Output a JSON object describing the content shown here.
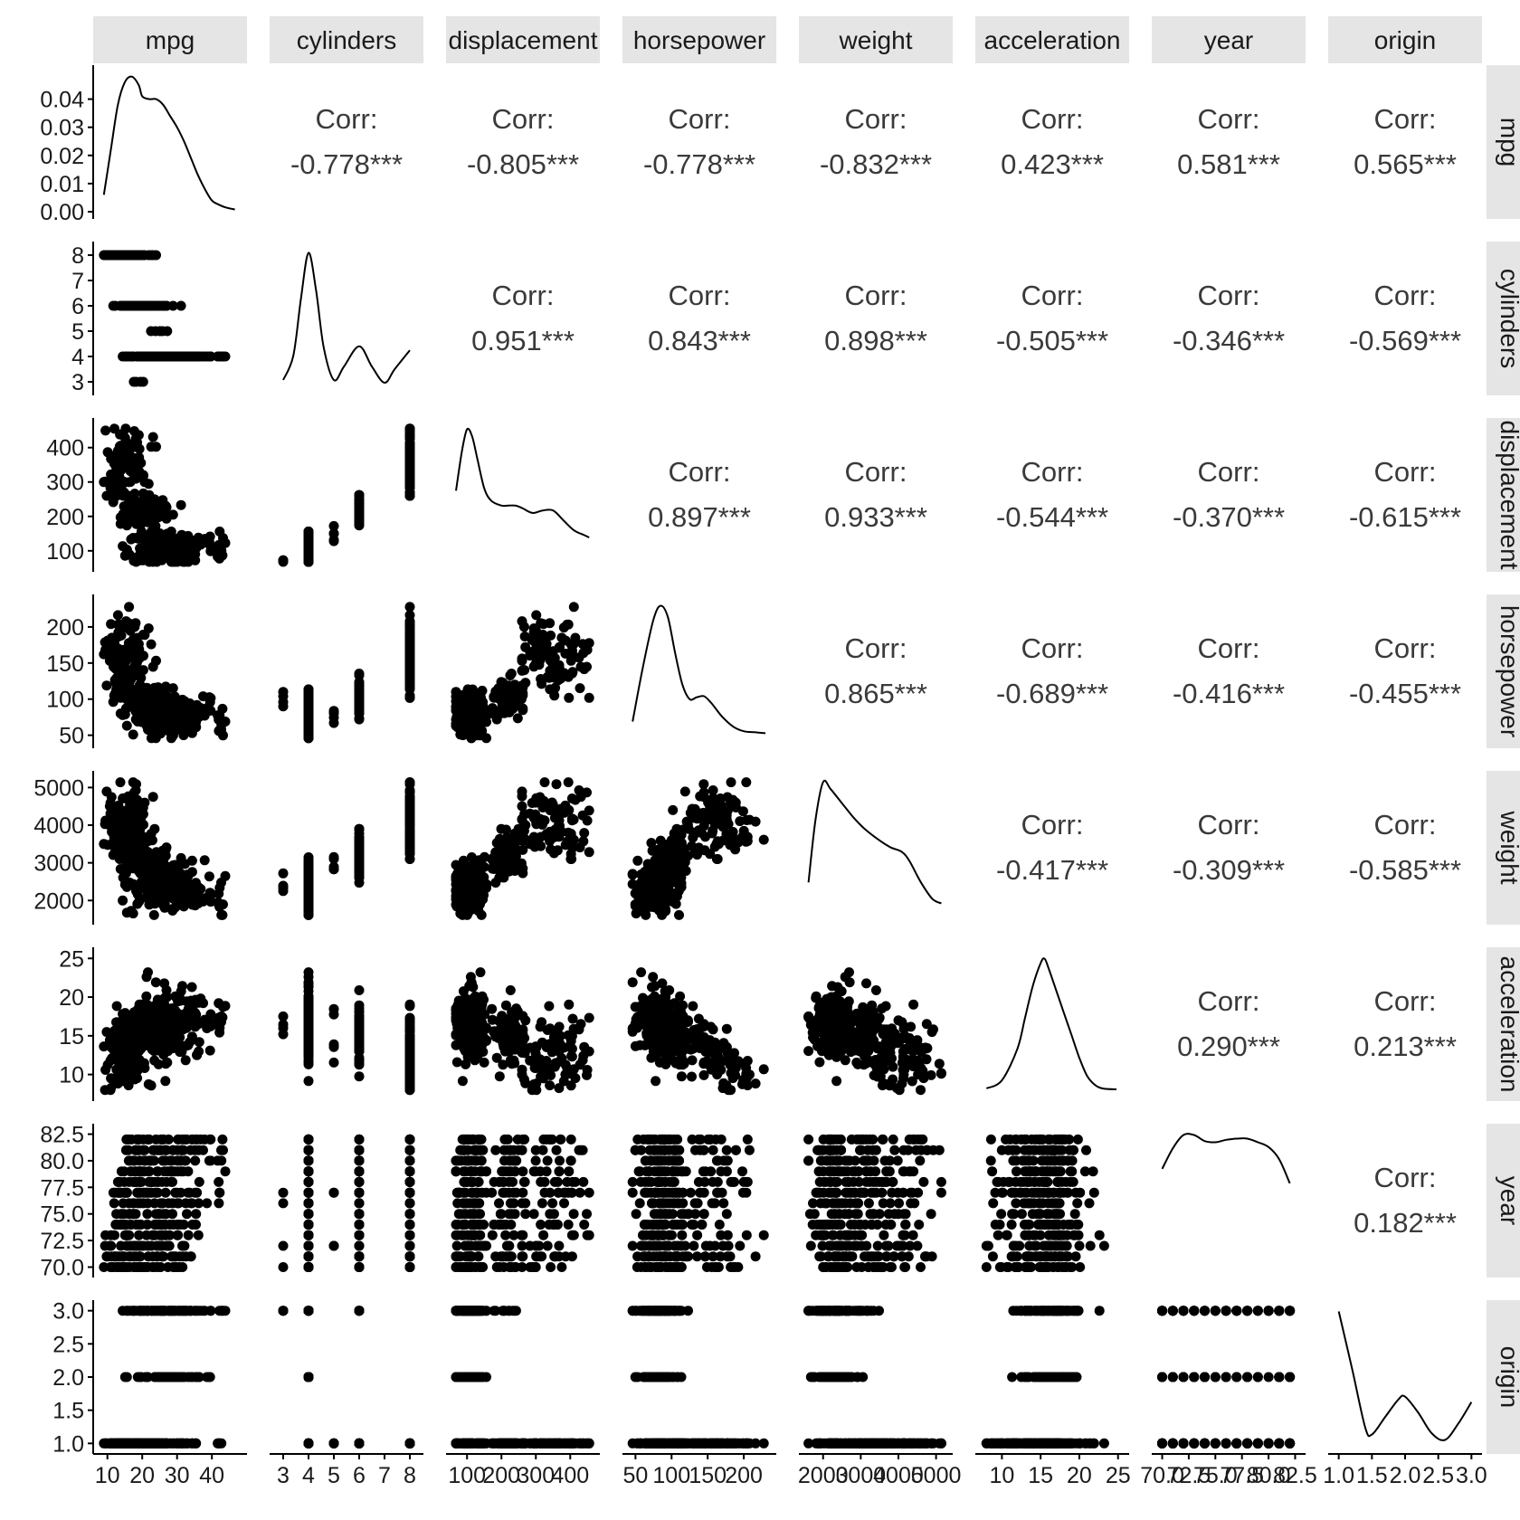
{
  "chart_data": {
    "type": "scatter",
    "layout": "pairs-matrix",
    "variables": [
      "mpg",
      "cylinders",
      "displacement",
      "horsepower",
      "weight",
      "acceleration",
      "year",
      "origin"
    ],
    "ranges": {
      "mpg": [
        8,
        48
      ],
      "cylinders": [
        2.75,
        8.25
      ],
      "displacement": [
        60,
        465
      ],
      "horsepower": [
        42,
        235
      ],
      "weight": [
        1550,
        5250
      ],
      "acceleration": [
        7.5,
        25.5
      ],
      "year": [
        69.7,
        82.8
      ],
      "origin": [
        0.95,
        3.05
      ]
    },
    "ticks": {
      "mpg": [
        "10",
        "20",
        "30",
        "40"
      ],
      "cylinders": [
        "3",
        "4",
        "5",
        "6",
        "7",
        "8"
      ],
      "displacement": [
        "100",
        "200",
        "300",
        "400"
      ],
      "horsepower": [
        "50",
        "100",
        "150",
        "200"
      ],
      "weight": [
        "2000",
        "3000",
        "4000",
        "5000"
      ],
      "acceleration": [
        "10",
        "15",
        "20",
        "25"
      ],
      "year": [
        "70.0",
        "72.5",
        "75.0",
        "77.5",
        "80.0",
        "82.5"
      ],
      "origin": [
        "1.0",
        "1.5",
        "2.0",
        "2.5",
        "3.0"
      ]
    },
    "density_ticks": [
      "0.00",
      "0.01",
      "0.02",
      "0.03",
      "0.04"
    ],
    "corr_label": "Corr:",
    "correlations": [
      {
        "row": "mpg",
        "col": "cylinders",
        "value": "-0.778***"
      },
      {
        "row": "mpg",
        "col": "displacement",
        "value": "-0.805***"
      },
      {
        "row": "mpg",
        "col": "horsepower",
        "value": "-0.778***"
      },
      {
        "row": "mpg",
        "col": "weight",
        "value": "-0.832***"
      },
      {
        "row": "mpg",
        "col": "acceleration",
        "value": "0.423***"
      },
      {
        "row": "mpg",
        "col": "year",
        "value": "0.581***"
      },
      {
        "row": "mpg",
        "col": "origin",
        "value": "0.565***"
      },
      {
        "row": "cylinders",
        "col": "displacement",
        "value": "0.951***"
      },
      {
        "row": "cylinders",
        "col": "horsepower",
        "value": "0.843***"
      },
      {
        "row": "cylinders",
        "col": "weight",
        "value": "0.898***"
      },
      {
        "row": "cylinders",
        "col": "acceleration",
        "value": "-0.505***"
      },
      {
        "row": "cylinders",
        "col": "year",
        "value": "-0.346***"
      },
      {
        "row": "cylinders",
        "col": "origin",
        "value": "-0.569***"
      },
      {
        "row": "displacement",
        "col": "horsepower",
        "value": "0.897***"
      },
      {
        "row": "displacement",
        "col": "weight",
        "value": "0.933***"
      },
      {
        "row": "displacement",
        "col": "acceleration",
        "value": "-0.544***"
      },
      {
        "row": "displacement",
        "col": "year",
        "value": "-0.370***"
      },
      {
        "row": "displacement",
        "col": "origin",
        "value": "-0.615***"
      },
      {
        "row": "horsepower",
        "col": "weight",
        "value": "0.865***"
      },
      {
        "row": "horsepower",
        "col": "acceleration",
        "value": "-0.689***"
      },
      {
        "row": "horsepower",
        "col": "year",
        "value": "-0.416***"
      },
      {
        "row": "horsepower",
        "col": "origin",
        "value": "-0.455***"
      },
      {
        "row": "weight",
        "col": "acceleration",
        "value": "-0.417***"
      },
      {
        "row": "weight",
        "col": "year",
        "value": "-0.309***"
      },
      {
        "row": "weight",
        "col": "origin",
        "value": "-0.585***"
      },
      {
        "row": "acceleration",
        "col": "year",
        "value": "0.290***"
      },
      {
        "row": "acceleration",
        "col": "origin",
        "value": "0.213***"
      },
      {
        "row": "year",
        "col": "origin",
        "value": "0.182***"
      }
    ],
    "densities": {
      "mpg": [
        [
          9,
          0.006
        ],
        [
          11,
          0.022
        ],
        [
          13,
          0.038
        ],
        [
          15,
          0.046
        ],
        [
          17,
          0.048
        ],
        [
          19,
          0.045
        ],
        [
          20,
          0.041
        ],
        [
          22,
          0.04
        ],
        [
          24,
          0.04
        ],
        [
          26,
          0.038
        ],
        [
          28,
          0.034
        ],
        [
          30,
          0.03
        ],
        [
          32,
          0.025
        ],
        [
          34,
          0.019
        ],
        [
          36,
          0.013
        ],
        [
          38,
          0.008
        ],
        [
          40,
          0.004
        ],
        [
          42,
          0.0025
        ],
        [
          44,
          0.0015
        ],
        [
          46.6,
          0.0008
        ]
      ],
      "cylinders": [
        [
          3,
          0.03
        ],
        [
          3.4,
          0.12
        ],
        [
          3.7,
          0.33
        ],
        [
          4,
          0.5
        ],
        [
          4.3,
          0.36
        ],
        [
          4.6,
          0.15
        ],
        [
          5,
          0.03
        ],
        [
          5.4,
          0.08
        ],
        [
          6,
          0.155
        ],
        [
          6.5,
          0.08
        ],
        [
          7,
          0.02
        ],
        [
          7.4,
          0.07
        ],
        [
          8,
          0.14
        ]
      ],
      "displacement": [
        [
          68,
          0.003
        ],
        [
          85,
          0.0046
        ],
        [
          100,
          0.0055
        ],
        [
          115,
          0.0052
        ],
        [
          130,
          0.0043
        ],
        [
          150,
          0.0031
        ],
        [
          170,
          0.0026
        ],
        [
          200,
          0.0024
        ],
        [
          220,
          0.0024
        ],
        [
          240,
          0.0024
        ],
        [
          260,
          0.0023
        ],
        [
          290,
          0.0021
        ],
        [
          320,
          0.0022
        ],
        [
          350,
          0.0022
        ],
        [
          380,
          0.0018
        ],
        [
          410,
          0.0014
        ],
        [
          440,
          0.0012
        ],
        [
          455,
          0.0011
        ]
      ],
      "horsepower": [
        [
          46,
          0.002
        ],
        [
          60,
          0.0075
        ],
        [
          75,
          0.0125
        ],
        [
          85,
          0.0139
        ],
        [
          95,
          0.0127
        ],
        [
          105,
          0.009
        ],
        [
          115,
          0.0058
        ],
        [
          125,
          0.0043
        ],
        [
          135,
          0.0045
        ],
        [
          145,
          0.0046
        ],
        [
          155,
          0.0039
        ],
        [
          170,
          0.0025
        ],
        [
          185,
          0.0015
        ],
        [
          200,
          0.001
        ],
        [
          215,
          0.0009
        ],
        [
          230,
          0.0008
        ]
      ],
      "weight": [
        [
          1613,
          0.00015
        ],
        [
          1800,
          0.00042
        ],
        [
          2000,
          0.00058
        ],
        [
          2200,
          0.00055
        ],
        [
          2500,
          0.00049
        ],
        [
          2800,
          0.00043
        ],
        [
          3100,
          0.00038
        ],
        [
          3500,
          0.00033
        ],
        [
          3800,
          0.0003
        ],
        [
          4100,
          0.00028
        ],
        [
          4300,
          0.00024
        ],
        [
          4600,
          0.00015
        ],
        [
          4900,
          8e-05
        ],
        [
          5140,
          6e-05
        ]
      ],
      "acceleration": [
        [
          8,
          0.006
        ],
        [
          10,
          0.015
        ],
        [
          12,
          0.05
        ],
        [
          13,
          0.085
        ],
        [
          14,
          0.12
        ],
        [
          15,
          0.145
        ],
        [
          15.5,
          0.15
        ],
        [
          16,
          0.14
        ],
        [
          17,
          0.115
        ],
        [
          18,
          0.09
        ],
        [
          19,
          0.065
        ],
        [
          20,
          0.04
        ],
        [
          21,
          0.02
        ],
        [
          22,
          0.01
        ],
        [
          23,
          0.006
        ],
        [
          24.8,
          0.005
        ]
      ],
      "year": [
        [
          70,
          0.084
        ],
        [
          71,
          0.101
        ],
        [
          72,
          0.112
        ],
        [
          73,
          0.112
        ],
        [
          74,
          0.107
        ],
        [
          75,
          0.106
        ],
        [
          76,
          0.108
        ],
        [
          77,
          0.109
        ],
        [
          78,
          0.109
        ],
        [
          79,
          0.106
        ],
        [
          80,
          0.102
        ],
        [
          81,
          0.092
        ],
        [
          82,
          0.072
        ]
      ],
      "origin": [
        [
          1,
          1.0
        ],
        [
          1.2,
          0.58
        ],
        [
          1.4,
          0.14
        ],
        [
          1.5,
          0.09
        ],
        [
          1.7,
          0.22
        ],
        [
          1.9,
          0.35
        ],
        [
          2,
          0.37
        ],
        [
          2.2,
          0.25
        ],
        [
          2.4,
          0.1
        ],
        [
          2.6,
          0.05
        ],
        [
          2.8,
          0.17
        ],
        [
          3,
          0.33
        ]
      ]
    },
    "point_count": 392,
    "xlabel": "",
    "ylabel": "",
    "title": "",
    "grid": false,
    "colors": {
      "points": "#000000",
      "strip": "#e5e5e5",
      "corr_text": "#3a3a3a"
    }
  }
}
